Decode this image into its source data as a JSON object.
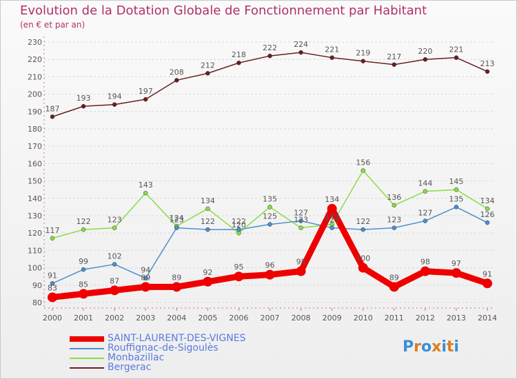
{
  "title": "Evolution de la Dotation Globale de Fonctionnement par Habitant",
  "subtitle": "(en € et par an)",
  "logo": {
    "text": "Proxiti",
    "colors": [
      "#3a8fd8",
      "#e07a20",
      "#3a8fd8",
      "#e07a20",
      "#3a8fd8",
      "#e07a20",
      "#3a8fd8"
    ]
  },
  "chart_data": {
    "type": "line",
    "title": "Evolution de la Dotation Globale de Fonctionnement par Habitant",
    "ylabel": "(en € et par an)",
    "xlabel": "",
    "ylim": [
      80,
      230
    ],
    "yticks": [
      80,
      90,
      100,
      110,
      120,
      130,
      140,
      150,
      160,
      170,
      180,
      190,
      200,
      210,
      220,
      230
    ],
    "categories": [
      "2000",
      "2001",
      "2002",
      "2003",
      "2004",
      "2005",
      "2006",
      "2007",
      "2008",
      "2009",
      "2010",
      "2011",
      "2012",
      "2013",
      "2014"
    ],
    "legend_position": "bottom-left",
    "series": [
      {
        "name": "SAINT-LAURENT-DES-VIGNES",
        "color": "#ee0000",
        "values": [
          83,
          85,
          87,
          89,
          89,
          92,
          95,
          96,
          98,
          134,
          100,
          89,
          98,
          97,
          91
        ]
      },
      {
        "name": "Rouffignac-de-Sigoulès",
        "color": "#4a8fd0",
        "values": [
          91,
          99,
          102,
          94,
          123,
          122,
          122,
          125,
          127,
          123,
          122,
          123,
          127,
          135,
          126
        ]
      },
      {
        "name": "Monbazillac",
        "color": "#88dd44",
        "values": [
          117,
          122,
          123,
          143,
          124,
          134,
          120,
          135,
          123,
          125,
          156,
          136,
          144,
          145,
          134
        ]
      },
      {
        "name": "Bergerac",
        "color": "#6b1f1f",
        "values": [
          187,
          193,
          194,
          197,
          208,
          212,
          218,
          222,
          224,
          221,
          219,
          217,
          220,
          221,
          213
        ]
      }
    ]
  }
}
